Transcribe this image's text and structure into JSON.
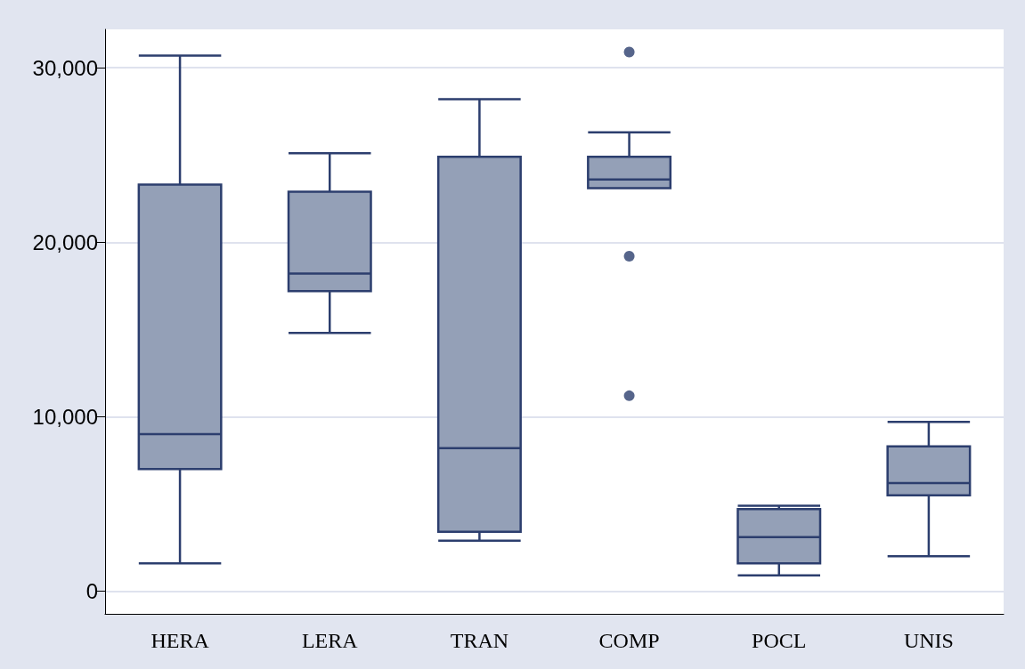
{
  "chart_data": {
    "type": "box",
    "categories": [
      "HERA",
      "LERA",
      "TRAN",
      "COMP",
      "POCL",
      "UNIS"
    ],
    "color": "#94a0b7",
    "boxes": [
      {
        "low": 1600,
        "q1": 7000,
        "median": 9000,
        "q3": 23300,
        "high": 30700
      },
      {
        "low": 14800,
        "q1": 17200,
        "median": 18200,
        "q3": 22900,
        "high": 25100
      },
      {
        "low": 2900,
        "q1": 3400,
        "median": 8200,
        "q3": 24900,
        "high": 28200
      },
      {
        "low": 23100,
        "q1": 23100,
        "median": 23600,
        "q3": 24900,
        "high": 26300,
        "outliers": [
          30900,
          19200,
          11200
        ]
      },
      {
        "low": 900,
        "q1": 1600,
        "median": 3100,
        "q3": 4700,
        "high": 4900
      },
      {
        "low": 2000,
        "q1": 5500,
        "median": 6200,
        "q3": 8300,
        "high": 9700
      }
    ],
    "ylim": [
      -1300,
      32200
    ],
    "yticks": [
      {
        "value": 0,
        "label": "0"
      },
      {
        "value": 10000,
        "label": "10,000"
      },
      {
        "value": 20000,
        "label": "20,000"
      },
      {
        "value": 30000,
        "label": "30,000"
      }
    ],
    "grid": "y"
  }
}
